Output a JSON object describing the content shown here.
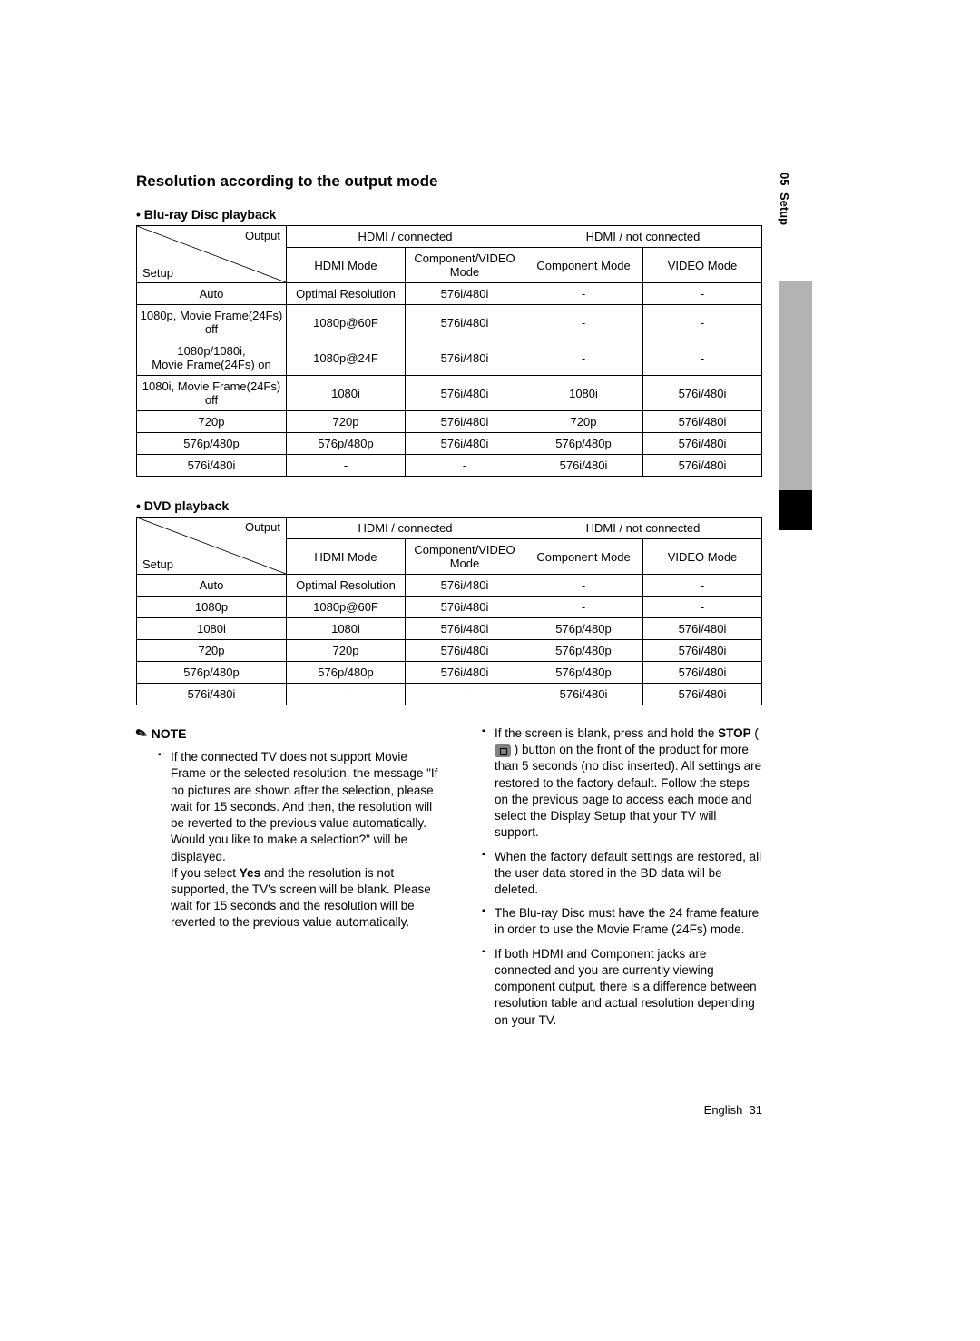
{
  "sidebar": {
    "chapter_num": "05",
    "chapter_name": "Setup"
  },
  "section_title": "Resolution according to the output mode",
  "table1": {
    "label": "• Blu-ray Disc playback",
    "corner_output": "Output",
    "corner_setup": "Setup",
    "hdmi_connected": "HDMI / connected",
    "hdmi_not_connected": "HDMI / not connected",
    "cols": [
      "HDMI Mode",
      "Component/VIDEO Mode",
      "Component Mode",
      "VIDEO Mode"
    ],
    "rows": [
      {
        "setup": "Auto",
        "cells": [
          "Optimal Resolution",
          "576i/480i",
          "-",
          "-"
        ]
      },
      {
        "setup": "1080p, Movie Frame(24Fs) off",
        "cells": [
          "1080p@60F",
          "576i/480i",
          "-",
          "-"
        ]
      },
      {
        "setup": "1080p/1080i,\nMovie Frame(24Fs) on",
        "cells": [
          "1080p@24F",
          "576i/480i",
          "-",
          "-"
        ]
      },
      {
        "setup": "1080i, Movie Frame(24Fs) off",
        "cells": [
          "1080i",
          "576i/480i",
          "1080i",
          "576i/480i"
        ]
      },
      {
        "setup": "720p",
        "cells": [
          "720p",
          "576i/480i",
          "720p",
          "576i/480i"
        ]
      },
      {
        "setup": "576p/480p",
        "cells": [
          "576p/480p",
          "576i/480i",
          "576p/480p",
          "576i/480i"
        ]
      },
      {
        "setup": "576i/480i",
        "cells": [
          "-",
          "-",
          "576i/480i",
          "576i/480i"
        ]
      }
    ]
  },
  "table2": {
    "label": "• DVD playback",
    "corner_output": "Output",
    "corner_setup": "Setup",
    "hdmi_connected": "HDMI / connected",
    "hdmi_not_connected": "HDMI / not connected",
    "cols": [
      "HDMI Mode",
      "Component/VIDEO Mode",
      "Component Mode",
      "VIDEO Mode"
    ],
    "rows": [
      {
        "setup": "Auto",
        "cells": [
          "Optimal Resolution",
          "576i/480i",
          "-",
          "-"
        ]
      },
      {
        "setup": "1080p",
        "cells": [
          "1080p@60F",
          "576i/480i",
          "-",
          "-"
        ]
      },
      {
        "setup": "1080i",
        "cells": [
          "1080i",
          "576i/480i",
          "576p/480p",
          "576i/480i"
        ]
      },
      {
        "setup": "720p",
        "cells": [
          "720p",
          "576i/480i",
          "576p/480p",
          "576i/480i"
        ]
      },
      {
        "setup": "576p/480p",
        "cells": [
          "576p/480p",
          "576i/480i",
          "576p/480p",
          "576i/480i"
        ]
      },
      {
        "setup": "576i/480i",
        "cells": [
          "-",
          "-",
          "576i/480i",
          "576i/480i"
        ]
      }
    ]
  },
  "notes": {
    "heading": "NOTE",
    "left": {
      "item1_a": "If the connected TV does not support Movie Frame or the selected resolution, the message \"If no pictures are shown after the selection, please wait for 15 seconds. And then, the resolution will be reverted to the previous value automatically. Would you like to make a selection?\" will be displayed.",
      "item1_b_prefix": "If you select ",
      "item1_b_bold": "Yes",
      "item1_b_suffix": " and the resolution is not supported, the TV's screen will be blank. Please wait for 15 seconds and the resolution will be reverted to the previous value automatically."
    },
    "right": {
      "item1_prefix": "If the screen is blank, press and hold the ",
      "item1_bold": "STOP",
      "item1_suffix": " button on the front of the product for more than 5 seconds (no disc inserted). All settings are restored to the factory default. Follow the steps on the previous page to access each mode and select the Display Setup that your TV will support.",
      "item2": "When the factory default settings are restored, all the user data stored in the BD data will be deleted.",
      "item3": "The Blu-ray Disc must have the 24 frame feature in order to use the Movie Frame (24Fs) mode.",
      "item4": "If both HDMI and Component jacks are connected and you are currently viewing component output, there is a difference between resolution table and actual resolution depending on your TV."
    }
  },
  "footer": {
    "lang": "English",
    "page": "31"
  }
}
